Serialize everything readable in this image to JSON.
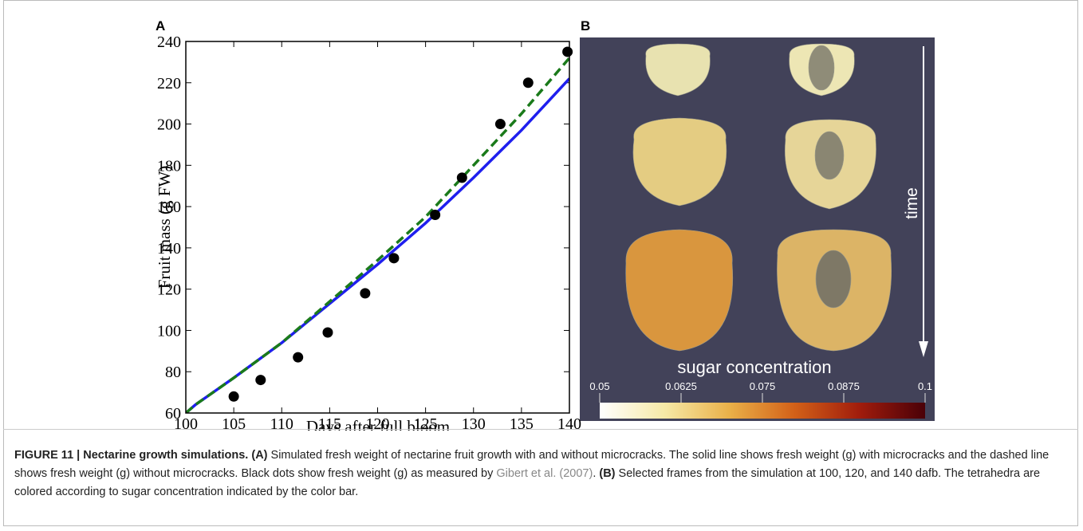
{
  "chart_data": [
    {
      "type": "line",
      "panel": "A",
      "xlabel": "Days after full bloom",
      "ylabel": "Fruit mass (g FW)",
      "xlim": [
        100,
        140
      ],
      "ylim": [
        60,
        240
      ],
      "xticks": [
        100,
        105,
        110,
        115,
        120,
        125,
        130,
        135,
        140
      ],
      "yticks": [
        60,
        80,
        100,
        120,
        140,
        160,
        180,
        200,
        220,
        240
      ],
      "series": [
        {
          "color": "#1f1fee",
          "line_style": "solid",
          "x": [
            100,
            101,
            105,
            110,
            115,
            120,
            125,
            130,
            135,
            140
          ],
          "values": [
            60,
            64,
            77,
            94,
            113,
            132,
            152,
            174,
            197,
            222
          ]
        },
        {
          "color": "#1a7a1a",
          "line_style": "dashed",
          "x": [
            100,
            101,
            105,
            110,
            115,
            120,
            125,
            130,
            135,
            140
          ],
          "values": [
            60,
            64,
            77,
            94,
            114,
            134,
            155,
            180,
            205,
            232
          ]
        },
        {
          "color": "#000000",
          "marker": "circle",
          "x": [
            105,
            107.8,
            111.7,
            114.8,
            118.7,
            121.7,
            126,
            128.8,
            132.8,
            135.7,
            139.8
          ],
          "values": [
            68,
            76,
            87,
            99,
            118,
            135,
            156,
            174,
            200,
            220,
            235
          ]
        }
      ]
    },
    {
      "type": "colorbar",
      "panel": "B",
      "title": "sugar concentration",
      "annotation": "time",
      "xlim": [
        0.05,
        0.1
      ],
      "xticks": [
        0.05,
        0.0625,
        0.075,
        0.0875,
        0.1
      ],
      "colors": [
        "#ffffff",
        "#f6e9a6",
        "#eab048",
        "#d26018",
        "#a01c0c",
        "#4a0008"
      ]
    }
  ],
  "caption": {
    "title": "FIGURE 11 | Nectarine growth simulations.",
    "a_label": "(A)",
    "a_text": "Simulated fresh weight of nectarine fruit growth with and without microcracks. The solid line shows fresh weight (g) with microcracks and the dashed line shows fresh weight (g) without microcracks. Black dots show fresh weight (g) as measured by",
    "citation": "Gibert et al. (2007)",
    "a_end": ".",
    "b_label": "(B)",
    "b_text": "Selected frames from the simulation at 100, 120, and 140 dafb. The tetrahedra are colored according to sugar concentration indicated by the color bar."
  }
}
